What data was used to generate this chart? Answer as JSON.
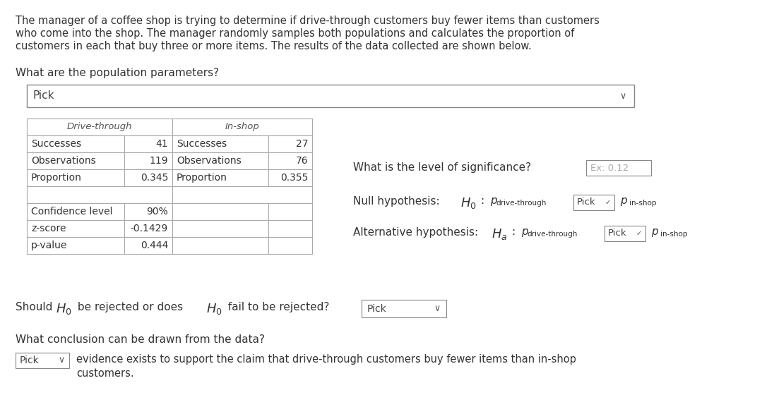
{
  "bg_color": "#ffffff",
  "text_color": "#333333",
  "intro_text_lines": [
    "The manager of a coffee shop is trying to determine if drive-through customers buy fewer items than customers",
    "who come into the shop. The manager randomly samples both populations and calculates the proportion of",
    "customers in each that buy three or more items. The results of the data collected are shown below."
  ],
  "q1_text": "What are the population parameters?",
  "pick_dropdown_text": "Pick",
  "table_headers": [
    "Drive-through",
    "In-shop"
  ],
  "table_rows": [
    [
      "Successes",
      "41",
      "Successes",
      "27"
    ],
    [
      "Observations",
      "119",
      "Observations",
      "76"
    ],
    [
      "Proportion",
      "0.345",
      "Proportion",
      "0.355"
    ]
  ],
  "table_extra": [
    [
      "Confidence level",
      "90%"
    ],
    [
      "z-score",
      "-0.1429"
    ],
    [
      "p-value",
      "0.444"
    ]
  ],
  "significance_label": "What is the level of significance?",
  "significance_placeholder": "Ex: 0.12",
  "conclusion_label": "What conclusion can be drawn from the data?",
  "conclusion_text_line1": "evidence exists to support the claim that drive-through customers buy fewer items than in-shop",
  "conclusion_text_line2": "customers."
}
